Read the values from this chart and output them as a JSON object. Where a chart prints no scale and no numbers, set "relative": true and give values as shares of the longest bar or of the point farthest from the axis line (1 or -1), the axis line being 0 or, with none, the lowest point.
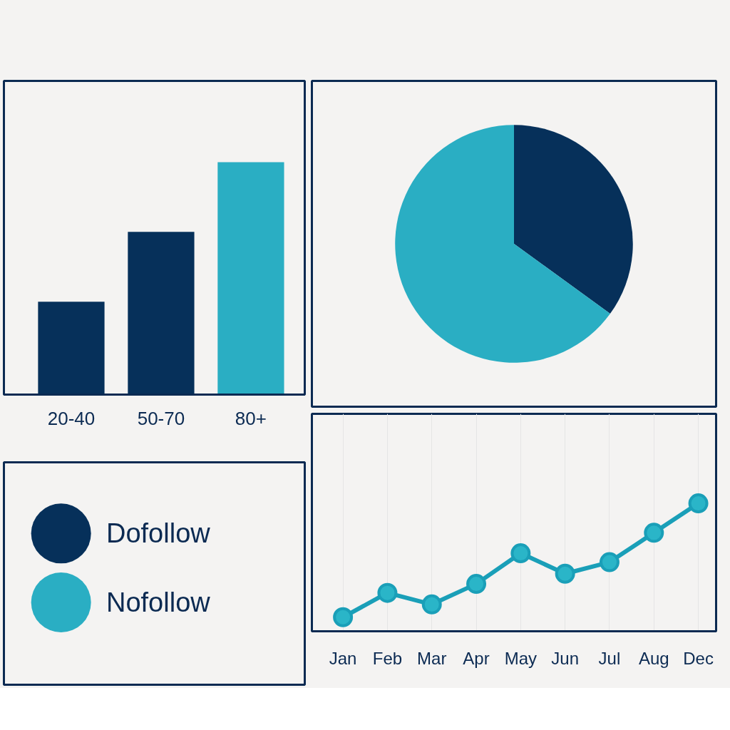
{
  "chart_data": [
    {
      "type": "bar",
      "relative": true,
      "categories": [
        "20-40",
        "50-70",
        "80+"
      ],
      "values": [
        0.4,
        0.7,
        1.0
      ],
      "colors": [
        "#06305a",
        "#06305a",
        "#2aaec3"
      ],
      "grid": false
    },
    {
      "type": "pie",
      "categories": [
        "Dofollow",
        "Nofollow"
      ],
      "values": [
        35,
        65
      ],
      "colors": [
        "#06305a",
        "#2aaec3"
      ],
      "legend": "left"
    },
    {
      "type": "line",
      "relative": true,
      "categories": [
        "Jan",
        "Feb",
        "Mar",
        "Apr",
        "May",
        "Jun",
        "Jul",
        "Aug",
        "Dec"
      ],
      "series": [
        {
          "color": "#1a9fb8",
          "values": [
            0.11,
            0.3,
            0.21,
            0.37,
            0.61,
            0.45,
            0.54,
            0.77,
            1.0
          ]
        }
      ],
      "marker": "circle",
      "grid": "x"
    }
  ]
}
